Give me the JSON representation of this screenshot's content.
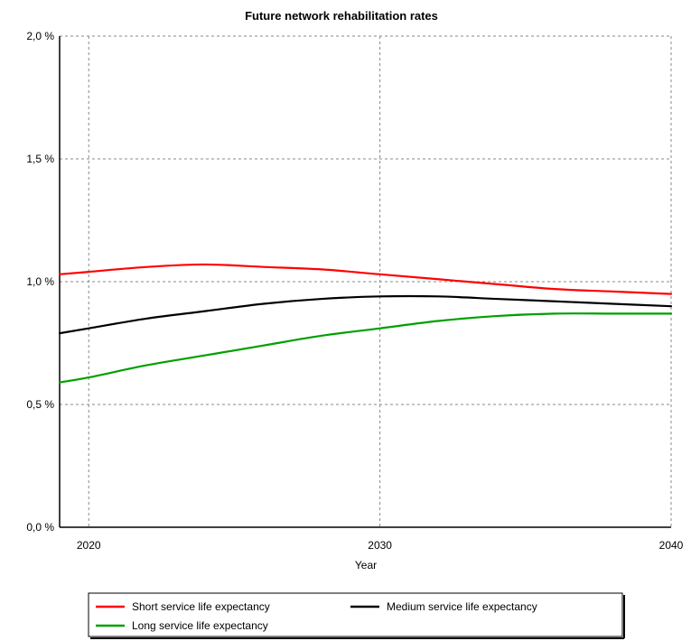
{
  "chart_data": {
    "type": "line",
    "title": "Future network rehabilitation rates",
    "xlabel": "Year",
    "ylabel": "",
    "xlim": [
      2019,
      2040
    ],
    "ylim": [
      0,
      2.0
    ],
    "x_ticks": [
      {
        "value": 2020,
        "label": "2020"
      },
      {
        "value": 2030,
        "label": "2030"
      },
      {
        "value": 2040,
        "label": "2040"
      }
    ],
    "y_ticks": [
      {
        "value": 0.0,
        "label": "0,0 %"
      },
      {
        "value": 0.5,
        "label": "0,5 %"
      },
      {
        "value": 1.0,
        "label": "1,0 %"
      },
      {
        "value": 1.5,
        "label": "1,5 %"
      },
      {
        "value": 2.0,
        "label": "2,0 %"
      }
    ],
    "grid": true,
    "legend_position": "bottom",
    "x": [
      2019,
      2020,
      2022,
      2024,
      2026,
      2028,
      2030,
      2032,
      2034,
      2036,
      2038,
      2040
    ],
    "series": [
      {
        "name": "Short service life expectancy",
        "color": "#ff0000",
        "values": [
          1.03,
          1.04,
          1.06,
          1.07,
          1.06,
          1.05,
          1.03,
          1.01,
          0.99,
          0.97,
          0.96,
          0.95
        ]
      },
      {
        "name": "Medium service life expectancy",
        "color": "#000000",
        "values": [
          0.79,
          0.81,
          0.85,
          0.88,
          0.91,
          0.93,
          0.94,
          0.94,
          0.93,
          0.92,
          0.91,
          0.9
        ]
      },
      {
        "name": "Long service life expectancy",
        "color": "#00a000",
        "values": [
          0.59,
          0.61,
          0.66,
          0.7,
          0.74,
          0.78,
          0.81,
          0.84,
          0.86,
          0.87,
          0.87,
          0.87
        ]
      }
    ]
  }
}
